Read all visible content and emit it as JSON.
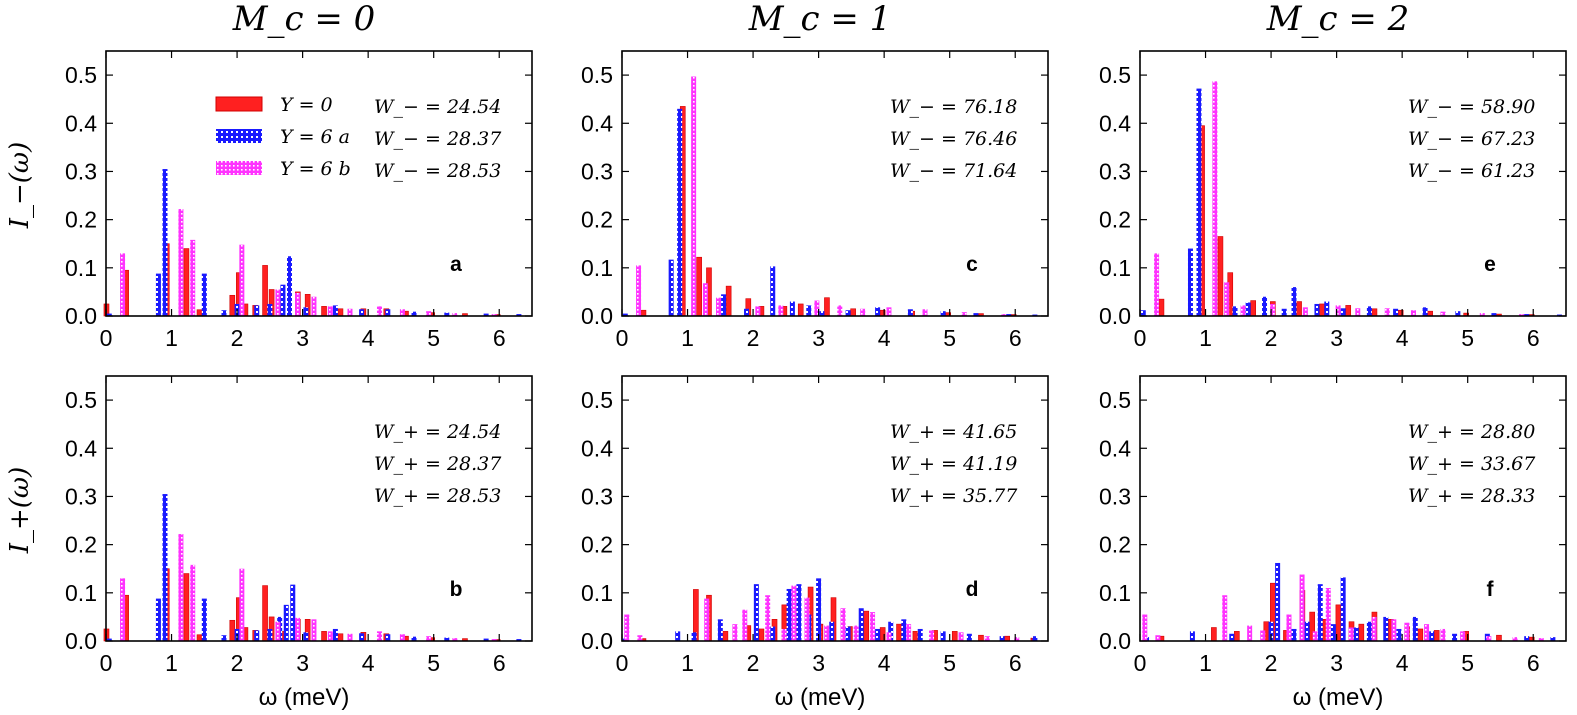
{
  "colors": {
    "Y=0": "#ff2020",
    "Y=6 a": "#1a1aff",
    "Y=6 b": "#ff33ff",
    "axis": "#000000"
  },
  "column_titles": [
    "M_c = 0",
    "M_c = 1",
    "M_c = 2"
  ],
  "xlabel": "ω (meV)",
  "ylabel_top": "I_−(ω)",
  "ylabel_bottom": "I_+(ω)",
  "legend": {
    "placement": "top-left",
    "entries": [
      "Y = 0",
      "Y = 6 a",
      "Y = 6 b"
    ]
  },
  "chart_data": [
    {
      "type": "bar",
      "panel": "a",
      "row": "top",
      "col": 0,
      "xlim": [
        0,
        6.5
      ],
      "ylim": [
        0,
        0.55
      ],
      "xticks": [
        0,
        1,
        2,
        3,
        4,
        5,
        6
      ],
      "yticks": [
        0.0,
        0.1,
        0.2,
        0.3,
        0.4,
        0.5
      ],
      "weights": [
        "W_− = 24.54",
        "W_− = 28.37",
        "W_− = 28.53"
      ],
      "series": [
        {
          "name": "Y = 0",
          "x": [
            0.03,
            0.33,
            0.95,
            1.25,
            1.45,
            1.95,
            2.05,
            2.15,
            2.3,
            2.45,
            2.55,
            2.7,
            2.95,
            3.1,
            3.35,
            3.6,
            3.95,
            4.3,
            4.6,
            5.0,
            5.5,
            6.0
          ],
          "values": [
            0.025,
            0.095,
            0.15,
            0.14,
            0.013,
            0.043,
            0.09,
            0.025,
            0.022,
            0.105,
            0.055,
            0.02,
            0.05,
            0.045,
            0.02,
            0.015,
            0.015,
            0.015,
            0.01,
            0.007,
            0.005,
            0.003
          ]
        },
        {
          "name": "Y = 6 a",
          "x": [
            0.05,
            0.8,
            0.9,
            1.5,
            1.8,
            2.0,
            2.3,
            2.5,
            2.7,
            2.8,
            3.05,
            3.5,
            3.9,
            4.3,
            4.7,
            5.2,
            5.8,
            6.3
          ],
          "values": [
            0.005,
            0.088,
            0.305,
            0.088,
            0.012,
            0.025,
            0.022,
            0.025,
            0.065,
            0.124,
            0.018,
            0.022,
            0.014,
            0.014,
            0.009,
            0.007,
            0.005,
            0.004
          ]
        },
        {
          "name": "Y = 6 b",
          "x": [
            0.23,
            1.12,
            1.3,
            2.05,
            2.6,
            2.9,
            3.15,
            3.4,
            3.7,
            4.15,
            4.5,
            4.9,
            5.3,
            5.9
          ],
          "values": [
            0.13,
            0.222,
            0.158,
            0.148,
            0.055,
            0.048,
            0.04,
            0.02,
            0.015,
            0.02,
            0.014,
            0.01,
            0.006,
            0.004
          ]
        }
      ]
    },
    {
      "type": "bar",
      "panel": "c",
      "row": "top",
      "col": 1,
      "xlim": [
        0,
        6.5
      ],
      "ylim": [
        0,
        0.55
      ],
      "xticks": [
        0,
        1,
        2,
        3,
        4,
        5,
        6
      ],
      "yticks": [
        0.0,
        0.1,
        0.2,
        0.3,
        0.4,
        0.5
      ],
      "weights": [
        "W_− = 76.18",
        "W_− = 76.46",
        "W_− = 71.64"
      ],
      "series": [
        {
          "name": "Y = 0",
          "x": [
            0.35,
            0.95,
            1.2,
            1.35,
            1.65,
            1.95,
            2.15,
            2.5,
            2.75,
            3.15,
            3.55,
            4.0,
            4.45,
            5.0,
            5.5,
            6.0
          ],
          "values": [
            0.012,
            0.435,
            0.122,
            0.1,
            0.062,
            0.036,
            0.02,
            0.02,
            0.025,
            0.038,
            0.015,
            0.012,
            0.01,
            0.007,
            0.005,
            0.003
          ]
        },
        {
          "name": "Y = 6 a",
          "x": [
            0.05,
            0.75,
            0.88,
            1.55,
            1.9,
            2.3,
            2.6,
            2.85,
            3.05,
            3.45,
            3.9,
            4.4,
            4.9,
            5.4,
            5.9,
            6.3
          ],
          "values": [
            0.005,
            0.117,
            0.43,
            0.045,
            0.015,
            0.103,
            0.03,
            0.022,
            0.01,
            0.012,
            0.018,
            0.014,
            0.01,
            0.006,
            0.004,
            0.003
          ]
        },
        {
          "name": "Y = 6 b",
          "x": [
            0.23,
            1.07,
            1.25,
            1.45,
            2.05,
            2.4,
            2.95,
            3.3,
            3.65,
            4.05,
            4.6,
            5.2,
            5.8
          ],
          "values": [
            0.105,
            0.497,
            0.068,
            0.038,
            0.02,
            0.022,
            0.032,
            0.022,
            0.015,
            0.018,
            0.014,
            0.008,
            0.004
          ]
        }
      ]
    },
    {
      "type": "bar",
      "panel": "e",
      "row": "top",
      "col": 2,
      "xlim": [
        0,
        6.5
      ],
      "ylim": [
        0,
        0.55
      ],
      "xticks": [
        0,
        1,
        2,
        3,
        4,
        5,
        6
      ],
      "yticks": [
        0.0,
        0.1,
        0.2,
        0.3,
        0.4,
        0.5
      ],
      "weights": [
        "W_− = 58.90",
        "W_− = 67.23",
        "W_− = 61.23"
      ],
      "series": [
        {
          "name": "Y = 0",
          "x": [
            0.35,
            0.97,
            1.25,
            1.4,
            1.75,
            2.05,
            2.45,
            2.8,
            3.2,
            3.6,
            4.0,
            4.45,
            5.0,
            5.5,
            6.0
          ],
          "values": [
            0.035,
            0.395,
            0.165,
            0.09,
            0.032,
            0.03,
            0.03,
            0.025,
            0.022,
            0.015,
            0.012,
            0.01,
            0.006,
            0.004,
            0.003
          ]
        },
        {
          "name": "Y = 6 a",
          "x": [
            0.05,
            0.77,
            0.9,
            1.45,
            1.65,
            1.9,
            2.2,
            2.35,
            2.7,
            2.85,
            3.1,
            3.5,
            3.9,
            4.35,
            4.85,
            5.4,
            5.9,
            6.4
          ],
          "values": [
            0.012,
            0.14,
            0.472,
            0.02,
            0.028,
            0.04,
            0.015,
            0.06,
            0.025,
            0.03,
            0.016,
            0.02,
            0.015,
            0.018,
            0.01,
            0.006,
            0.004,
            0.003
          ]
        },
        {
          "name": "Y = 6 b",
          "x": [
            0.23,
            1.12,
            1.3,
            1.55,
            2.0,
            2.5,
            3.0,
            3.3,
            3.75,
            4.15,
            4.6,
            5.2,
            5.8
          ],
          "values": [
            0.13,
            0.487,
            0.07,
            0.022,
            0.025,
            0.018,
            0.022,
            0.016,
            0.016,
            0.012,
            0.009,
            0.006,
            0.004
          ]
        }
      ]
    },
    {
      "type": "bar",
      "panel": "b",
      "row": "bottom",
      "col": 0,
      "xlim": [
        0,
        6.5
      ],
      "ylim": [
        0,
        0.55
      ],
      "xticks": [
        0,
        1,
        2,
        3,
        4,
        5,
        6
      ],
      "yticks": [
        0.0,
        0.1,
        0.2,
        0.3,
        0.4,
        0.5
      ],
      "weights": [
        "W_+ = 24.54",
        "W_+ = 28.37",
        "W_+ = 28.53"
      ],
      "series": [
        {
          "name": "Y = 0",
          "x": [
            0.03,
            0.33,
            0.95,
            1.25,
            1.45,
            1.95,
            2.05,
            2.15,
            2.3,
            2.45,
            2.55,
            2.7,
            2.95,
            3.1,
            3.35,
            3.6,
            3.95,
            4.3,
            4.6,
            5.0,
            5.5,
            6.0
          ],
          "values": [
            0.025,
            0.095,
            0.15,
            0.14,
            0.013,
            0.043,
            0.09,
            0.028,
            0.022,
            0.115,
            0.05,
            0.02,
            0.045,
            0.045,
            0.02,
            0.015,
            0.018,
            0.015,
            0.01,
            0.007,
            0.005,
            0.003
          ]
        },
        {
          "name": "Y = 6 a",
          "x": [
            0.05,
            0.8,
            0.9,
            1.5,
            1.8,
            2.0,
            2.3,
            2.5,
            2.65,
            2.75,
            2.85,
            3.05,
            3.5,
            3.9,
            4.3,
            4.7,
            5.2,
            5.8,
            6.3
          ],
          "values": [
            0.005,
            0.088,
            0.305,
            0.088,
            0.012,
            0.025,
            0.022,
            0.025,
            0.05,
            0.075,
            0.117,
            0.018,
            0.025,
            0.016,
            0.014,
            0.009,
            0.007,
            0.005,
            0.004
          ]
        },
        {
          "name": "Y = 6 b",
          "x": [
            0.23,
            1.12,
            1.3,
            2.05,
            2.6,
            2.9,
            3.15,
            3.4,
            3.7,
            4.15,
            4.5,
            4.9,
            5.3,
            5.9
          ],
          "values": [
            0.13,
            0.222,
            0.158,
            0.15,
            0.04,
            0.048,
            0.045,
            0.02,
            0.015,
            0.02,
            0.014,
            0.01,
            0.006,
            0.004
          ]
        }
      ]
    },
    {
      "type": "bar",
      "panel": "d",
      "row": "bottom",
      "col": 1,
      "xlim": [
        0,
        6.5
      ],
      "ylim": [
        0,
        0.55
      ],
      "xticks": [
        0,
        1,
        2,
        3,
        4,
        5,
        6
      ],
      "yticks": [
        0.0,
        0.1,
        0.2,
        0.3,
        0.4,
        0.5
      ],
      "weights": [
        "W_+ = 41.65",
        "W_+ = 41.19",
        "W_+ = 35.77"
      ],
      "series": [
        {
          "name": "Y = 0",
          "x": [
            0.35,
            1.15,
            1.35,
            1.6,
            1.95,
            2.15,
            2.35,
            2.5,
            2.65,
            2.9,
            3.05,
            3.25,
            3.5,
            3.75,
            4.0,
            4.25,
            4.5,
            4.8,
            5.1,
            5.5,
            5.9,
            6.3
          ],
          "values": [
            0.005,
            0.107,
            0.095,
            0.02,
            0.032,
            0.025,
            0.045,
            0.075,
            0.065,
            0.112,
            0.035,
            0.09,
            0.03,
            0.062,
            0.028,
            0.035,
            0.02,
            0.022,
            0.02,
            0.012,
            0.01,
            0.006
          ]
        },
        {
          "name": "Y = 6 a",
          "x": [
            0.05,
            0.85,
            1.1,
            1.5,
            2.05,
            2.3,
            2.55,
            2.7,
            2.85,
            3.0,
            3.2,
            3.45,
            3.65,
            3.9,
            4.1,
            4.3,
            4.55,
            4.9,
            5.3,
            5.8,
            6.3
          ],
          "values": [
            0.005,
            0.02,
            0.018,
            0.045,
            0.118,
            0.03,
            0.108,
            0.118,
            0.055,
            0.13,
            0.04,
            0.03,
            0.068,
            0.025,
            0.04,
            0.045,
            0.025,
            0.02,
            0.015,
            0.01,
            0.01
          ]
        },
        {
          "name": "Y = 6 b",
          "x": [
            0.05,
            0.25,
            1.27,
            1.7,
            1.85,
            2.2,
            2.45,
            2.6,
            2.8,
            3.1,
            3.35,
            3.55,
            3.8,
            4.05,
            4.35,
            4.7,
            5.15,
            5.55,
            6.0
          ],
          "values": [
            0.055,
            0.012,
            0.088,
            0.035,
            0.065,
            0.095,
            0.025,
            0.115,
            0.09,
            0.032,
            0.068,
            0.032,
            0.06,
            0.018,
            0.035,
            0.022,
            0.018,
            0.01,
            0.008
          ]
        }
      ]
    },
    {
      "type": "bar",
      "panel": "f",
      "row": "bottom",
      "col": 2,
      "xlim": [
        0,
        6.5
      ],
      "ylim": [
        0,
        0.55
      ],
      "xticks": [
        0,
        1,
        2,
        3,
        4,
        5,
        6
      ],
      "yticks": [
        0.0,
        0.1,
        0.2,
        0.3,
        0.4,
        0.5
      ],
      "weights": [
        "W_+ = 28.80",
        "W_+ = 33.67",
        "W_+ = 28.33"
      ],
      "series": [
        {
          "name": "Y = 0",
          "x": [
            0.35,
            1.15,
            1.5,
            1.95,
            2.05,
            2.25,
            2.5,
            2.65,
            2.85,
            3.05,
            3.25,
            3.4,
            3.6,
            3.85,
            4.1,
            4.3,
            4.55,
            5.0,
            5.5,
            6.0
          ],
          "values": [
            0.01,
            0.028,
            0.02,
            0.04,
            0.12,
            0.022,
            0.105,
            0.06,
            0.045,
            0.075,
            0.04,
            0.035,
            0.06,
            0.045,
            0.03,
            0.025,
            0.022,
            0.02,
            0.012,
            0.008
          ]
        },
        {
          "name": "Y = 6 a",
          "x": [
            0.1,
            0.8,
            1.4,
            2.0,
            2.1,
            2.35,
            2.55,
            2.75,
            2.95,
            3.1,
            3.3,
            3.5,
            3.75,
            3.95,
            4.2,
            4.45,
            4.8,
            5.3,
            5.9,
            6.3
          ],
          "values": [
            0.008,
            0.02,
            0.015,
            0.04,
            0.162,
            0.025,
            0.04,
            0.118,
            0.035,
            0.132,
            0.028,
            0.04,
            0.05,
            0.025,
            0.05,
            0.02,
            0.015,
            0.015,
            0.01,
            0.008
          ]
        },
        {
          "name": "Y = 6 b",
          "x": [
            0.05,
            0.25,
            1.27,
            1.65,
            1.85,
            2.25,
            2.45,
            2.65,
            2.85,
            3.2,
            3.55,
            3.85,
            4.05,
            4.35,
            4.6,
            4.9,
            5.3,
            5.7,
            6.1
          ],
          "values": [
            0.055,
            0.012,
            0.095,
            0.032,
            0.022,
            0.055,
            0.138,
            0.02,
            0.11,
            0.028,
            0.05,
            0.045,
            0.038,
            0.035,
            0.025,
            0.02,
            0.01,
            0.008,
            0.006
          ]
        }
      ]
    }
  ]
}
